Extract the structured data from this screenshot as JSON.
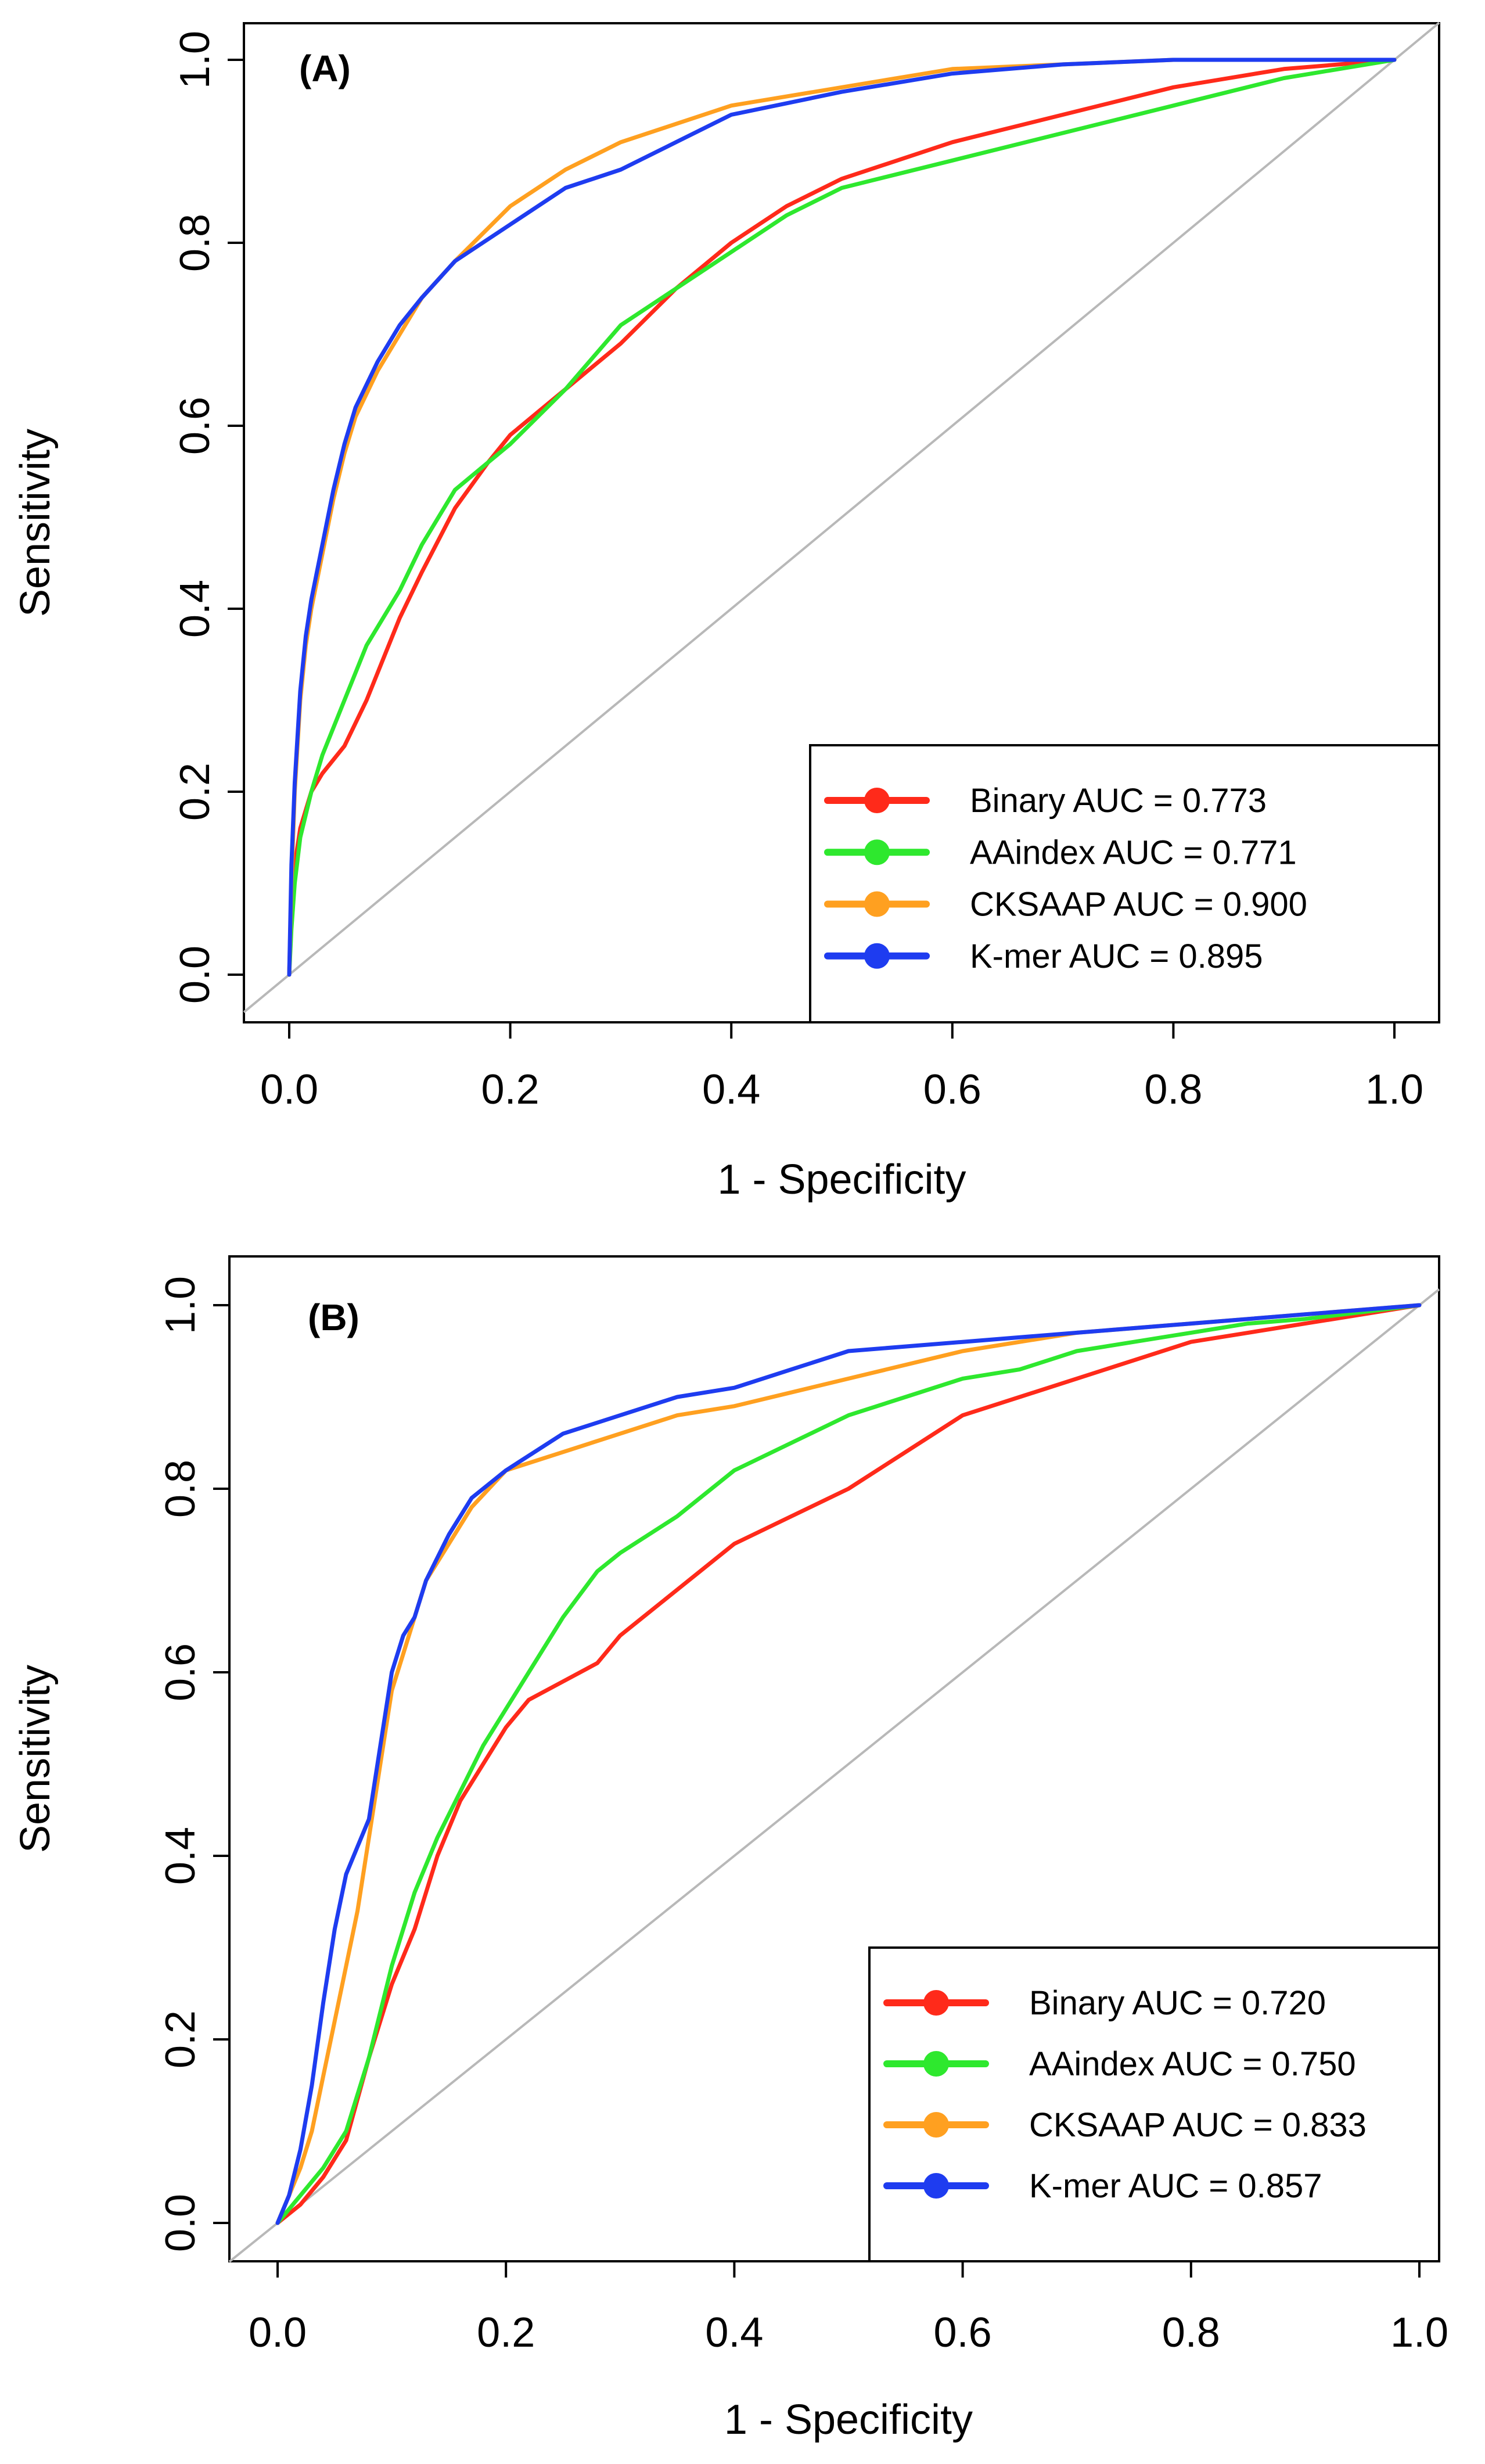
{
  "chart_data": [
    {
      "type": "line",
      "panel_label": "(A)",
      "xlabel": "1 - Specificity",
      "ylabel": "Sensitivity",
      "xlim": [
        0,
        1
      ],
      "ylim": [
        0,
        1
      ],
      "xticks": [
        "0.0",
        "0.2",
        "0.4",
        "0.6",
        "0.8",
        "1.0"
      ],
      "yticks": [
        "0.0",
        "0.2",
        "0.4",
        "0.6",
        "0.8",
        "1.0"
      ],
      "grid": false,
      "legend_position": "bottom-right",
      "diagonal_reference": true,
      "series": [
        {
          "name": "Binary AUC = 0.773",
          "color": "#ff2a1a",
          "x": [
            0,
            0.002,
            0.005,
            0.01,
            0.02,
            0.03,
            0.05,
            0.07,
            0.1,
            0.12,
            0.15,
            0.18,
            0.2,
            0.25,
            0.3,
            0.35,
            0.4,
            0.45,
            0.5,
            0.6,
            0.7,
            0.8,
            0.9,
            1.0
          ],
          "y": [
            0,
            0.08,
            0.12,
            0.16,
            0.2,
            0.22,
            0.25,
            0.3,
            0.39,
            0.44,
            0.51,
            0.56,
            0.59,
            0.64,
            0.69,
            0.75,
            0.8,
            0.84,
            0.87,
            0.91,
            0.94,
            0.97,
            0.99,
            1.0
          ]
        },
        {
          "name": "AAindex AUC = 0.771",
          "color": "#2ee82e",
          "x": [
            0,
            0.002,
            0.005,
            0.01,
            0.02,
            0.03,
            0.05,
            0.07,
            0.1,
            0.12,
            0.15,
            0.18,
            0.2,
            0.25,
            0.3,
            0.35,
            0.4,
            0.45,
            0.5,
            0.6,
            0.7,
            0.8,
            0.9,
            1.0
          ],
          "y": [
            0,
            0.05,
            0.1,
            0.15,
            0.2,
            0.24,
            0.3,
            0.36,
            0.42,
            0.47,
            0.53,
            0.56,
            0.58,
            0.64,
            0.71,
            0.75,
            0.79,
            0.83,
            0.86,
            0.89,
            0.92,
            0.95,
            0.98,
            1.0
          ]
        },
        {
          "name": "CKSAAP AUC = 0.900",
          "color": "#ffa020",
          "x": [
            0,
            0.002,
            0.005,
            0.01,
            0.015,
            0.02,
            0.03,
            0.04,
            0.05,
            0.06,
            0.08,
            0.1,
            0.12,
            0.15,
            0.2,
            0.25,
            0.3,
            0.35,
            0.4,
            0.5,
            0.6,
            0.7,
            0.8,
            0.9,
            1.0
          ],
          "y": [
            0,
            0.1,
            0.2,
            0.3,
            0.36,
            0.4,
            0.46,
            0.52,
            0.57,
            0.61,
            0.66,
            0.7,
            0.74,
            0.78,
            0.84,
            0.88,
            0.91,
            0.93,
            0.95,
            0.97,
            0.99,
            0.995,
            1.0,
            1.0,
            1.0
          ]
        },
        {
          "name": "K-mer AUC = 0.895",
          "color": "#1e3cf0",
          "x": [
            0,
            0.002,
            0.005,
            0.01,
            0.015,
            0.02,
            0.03,
            0.04,
            0.05,
            0.06,
            0.08,
            0.1,
            0.12,
            0.15,
            0.2,
            0.25,
            0.3,
            0.35,
            0.4,
            0.5,
            0.6,
            0.7,
            0.8,
            0.9,
            1.0
          ],
          "y": [
            0,
            0.12,
            0.21,
            0.31,
            0.37,
            0.41,
            0.47,
            0.53,
            0.58,
            0.62,
            0.67,
            0.71,
            0.74,
            0.78,
            0.82,
            0.86,
            0.88,
            0.91,
            0.94,
            0.965,
            0.985,
            0.995,
            1.0,
            1.0,
            1.0
          ]
        }
      ]
    },
    {
      "type": "line",
      "panel_label": "(B)",
      "xlabel": "1 - Specificity",
      "ylabel": "Sensitivity",
      "xlim": [
        0,
        1
      ],
      "ylim": [
        0,
        1
      ],
      "xticks": [
        "0.0",
        "0.2",
        "0.4",
        "0.6",
        "0.8",
        "1.0"
      ],
      "yticks": [
        "0.0",
        "0.2",
        "0.4",
        "0.6",
        "0.8",
        "1.0"
      ],
      "grid": false,
      "legend_position": "bottom-right",
      "diagonal_reference": true,
      "series": [
        {
          "name": "Binary AUC = 0.720",
          "color": "#ff2a1a",
          "x": [
            0,
            0.02,
            0.04,
            0.06,
            0.08,
            0.1,
            0.12,
            0.14,
            0.16,
            0.18,
            0.2,
            0.22,
            0.25,
            0.28,
            0.3,
            0.35,
            0.4,
            0.45,
            0.5,
            0.55,
            0.6,
            0.65,
            0.7,
            0.75,
            0.8,
            0.85,
            0.9,
            1.0
          ],
          "y": [
            0,
            0.02,
            0.05,
            0.09,
            0.18,
            0.26,
            0.32,
            0.4,
            0.46,
            0.5,
            0.54,
            0.57,
            0.59,
            0.61,
            0.64,
            0.69,
            0.74,
            0.77,
            0.8,
            0.84,
            0.88,
            0.9,
            0.92,
            0.94,
            0.96,
            0.97,
            0.98,
            1.0
          ]
        },
        {
          "name": "AAindex AUC = 0.750",
          "color": "#2ee82e",
          "x": [
            0,
            0.02,
            0.04,
            0.06,
            0.08,
            0.1,
            0.12,
            0.14,
            0.16,
            0.18,
            0.2,
            0.22,
            0.25,
            0.28,
            0.3,
            0.35,
            0.4,
            0.45,
            0.5,
            0.55,
            0.6,
            0.65,
            0.7,
            0.75,
            0.8,
            0.85,
            0.9,
            1.0
          ],
          "y": [
            0,
            0.03,
            0.06,
            0.1,
            0.18,
            0.28,
            0.36,
            0.42,
            0.47,
            0.52,
            0.56,
            0.6,
            0.66,
            0.71,
            0.73,
            0.77,
            0.82,
            0.85,
            0.88,
            0.9,
            0.92,
            0.93,
            0.95,
            0.96,
            0.97,
            0.98,
            0.985,
            1.0
          ]
        },
        {
          "name": "CKSAAP AUC = 0.833",
          "color": "#ffa020",
          "x": [
            0,
            0.01,
            0.02,
            0.03,
            0.04,
            0.05,
            0.06,
            0.07,
            0.08,
            0.09,
            0.1,
            0.11,
            0.12,
            0.13,
            0.15,
            0.17,
            0.2,
            0.25,
            0.3,
            0.35,
            0.4,
            0.5,
            0.6,
            0.7,
            0.8,
            0.9,
            1.0
          ],
          "y": [
            0,
            0.03,
            0.06,
            0.1,
            0.16,
            0.22,
            0.28,
            0.34,
            0.42,
            0.5,
            0.58,
            0.62,
            0.66,
            0.7,
            0.74,
            0.78,
            0.82,
            0.84,
            0.86,
            0.88,
            0.89,
            0.92,
            0.95,
            0.97,
            0.98,
            0.99,
            1.0
          ]
        },
        {
          "name": "K-mer AUC = 0.857",
          "color": "#1e3cf0",
          "x": [
            0,
            0.01,
            0.02,
            0.03,
            0.04,
            0.05,
            0.06,
            0.07,
            0.08,
            0.09,
            0.1,
            0.11,
            0.12,
            0.13,
            0.15,
            0.17,
            0.2,
            0.25,
            0.3,
            0.35,
            0.4,
            0.45,
            0.5,
            0.6,
            0.7,
            0.8,
            0.9,
            1.0
          ],
          "y": [
            0,
            0.03,
            0.08,
            0.15,
            0.24,
            0.32,
            0.38,
            0.41,
            0.44,
            0.52,
            0.6,
            0.64,
            0.66,
            0.7,
            0.75,
            0.79,
            0.82,
            0.86,
            0.88,
            0.9,
            0.91,
            0.93,
            0.95,
            0.96,
            0.97,
            0.98,
            0.99,
            1.0
          ]
        }
      ]
    }
  ]
}
